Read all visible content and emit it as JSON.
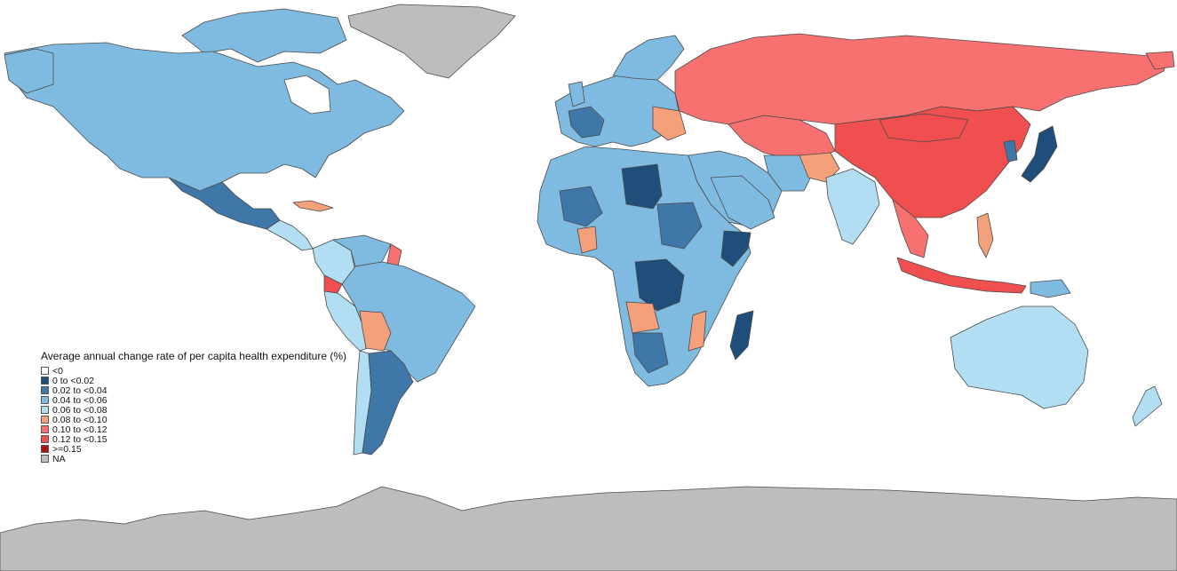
{
  "legend": {
    "title": "Average annual change rate of per capita health expenditure (%)",
    "items": [
      {
        "label": "<0",
        "color": "#ffffff"
      },
      {
        "label": "0 to <0.02",
        "color": "#1f4e7a"
      },
      {
        "label": "0.02 to <0.04",
        "color": "#3f78a8"
      },
      {
        "label": "0.04 to <0.06",
        "color": "#7fbbe0"
      },
      {
        "label": "0.06 to <0.08",
        "color": "#b2def3"
      },
      {
        "label": "0.08 to <0.10",
        "color": "#f4a07a"
      },
      {
        "label": "0.10 to <0.12",
        "color": "#f77171"
      },
      {
        "label": "0.12 to <0.15",
        "color": "#ef4f4f"
      },
      {
        "label": ">=0.15",
        "color": "#b20f10"
      },
      {
        "label": "NA",
        "color": "#bdbdbd"
      }
    ]
  }
}
